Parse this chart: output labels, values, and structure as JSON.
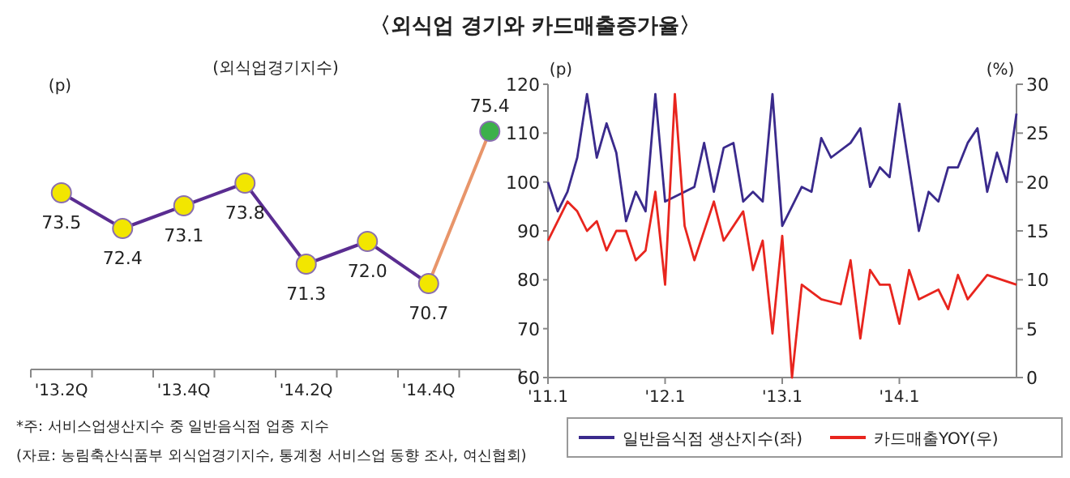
{
  "chart_data": [
    {
      "type": "line",
      "title": "〈외식업 경기와 카드매출증가율〉",
      "subtitle": "(외식업경기지수)",
      "ylabel": "(p)",
      "categories": [
        "'13.2Q",
        null,
        "'13.4Q",
        null,
        "'14.2Q",
        null,
        "'14.4Q",
        null
      ],
      "marker": "circle",
      "series": [
        {
          "color": "#5a2d91",
          "colors": [
            "#f2e600",
            "#f2e600",
            "#f2e600",
            "#f2e600",
            "#f2e600",
            "#f2e600",
            "#f2e600",
            null
          ],
          "values": [
            73.5,
            72.4,
            73.1,
            73.8,
            71.3,
            72.0,
            70.7,
            null
          ],
          "value_labels": [
            "73.5",
            "72.4",
            "73.1",
            "73.8",
            "71.3",
            "72.0",
            "70.7",
            null
          ]
        },
        {
          "color": "#e8956a",
          "colors": [
            null,
            null,
            null,
            null,
            null,
            null,
            null,
            "#3cb04a"
          ],
          "values": [
            null,
            null,
            null,
            null,
            null,
            null,
            70.7,
            75.4
          ],
          "value_labels": [
            null,
            null,
            null,
            null,
            null,
            null,
            null,
            "75.4"
          ]
        }
      ],
      "annotations": [
        "*주: 서비스업생산지수 중 일반음식점 업종 지수",
        "(자료: 농림축산식품부 외식업경기지수, 통계청 서비스업 동향 조사, 여신협회)"
      ]
    },
    {
      "type": "line",
      "ylabel": "(p)",
      "y2label": "(%)",
      "xlim": [
        "2011-01",
        "2015-01"
      ],
      "xticks": [
        {
          "value": "2011-01",
          "label": "'11.1"
        },
        {
          "value": "2012-01",
          "label": "'12.1"
        },
        {
          "value": "2013-01",
          "label": "'13.1"
        },
        {
          "value": "2014-01",
          "label": "'14.1"
        }
      ],
      "ylim": [
        60,
        120
      ],
      "yticks": [
        60,
        70,
        80,
        90,
        100,
        110,
        120
      ],
      "y2lim": [
        0,
        30
      ],
      "y2ticks": [
        0,
        5,
        10,
        15,
        20,
        25,
        30
      ],
      "legend": "bottom",
      "series": [
        {
          "name": "일반음식점 생산지수(좌)",
          "color": "#3a2a8c",
          "x": [
            "2011-01",
            "2011-02",
            "2011-03",
            "2011-04",
            "2011-05",
            "2011-06",
            "2011-07",
            "2011-08",
            "2011-09",
            "2011-10",
            "2011-11",
            "2011-12",
            "2012-01",
            "2012-02",
            "2012-03",
            "2012-04",
            "2012-05",
            "2012-06",
            "2012-07",
            "2012-08",
            "2012-09",
            "2012-10",
            "2012-11",
            "2012-12",
            "2013-01",
            "2013-03",
            "2013-04",
            "2013-05",
            "2013-06",
            "2013-08",
            "2013-09",
            "2013-10",
            "2013-11",
            "2013-12",
            "2014-01",
            "2014-03",
            "2014-04",
            "2014-05",
            "2014-06",
            "2014-07",
            "2014-08",
            "2014-09",
            "2014-10",
            "2014-11",
            "2014-12",
            "2015-01"
          ],
          "values": [
            100,
            94,
            98,
            105,
            118,
            105,
            112,
            106,
            92,
            98,
            94,
            118,
            96,
            97,
            98,
            99,
            108,
            98,
            107,
            108,
            96,
            98,
            96,
            118,
            91,
            99,
            98,
            109,
            105,
            108,
            111,
            99,
            103,
            101,
            116,
            90,
            98,
            96,
            103,
            103,
            108,
            111,
            98,
            106,
            100,
            114
          ]
        },
        {
          "name": "카드매출YOY(우)",
          "color": "#e8251e",
          "axis": "y2",
          "x": [
            "2011-01",
            "2011-03",
            "2011-04",
            "2011-05",
            "2011-06",
            "2011-07",
            "2011-08",
            "2011-09",
            "2011-10",
            "2011-11",
            "2011-12",
            "2012-01",
            "2012-02",
            "2012-03",
            "2012-04",
            "2012-06",
            "2012-07",
            "2012-09",
            "2012-10",
            "2012-11",
            "2012-12",
            "2013-01",
            "2013-02",
            "2013-03",
            "2013-05",
            "2013-07",
            "2013-08",
            "2013-09",
            "2013-10",
            "2013-11",
            "2013-12",
            "2014-01",
            "2014-02",
            "2014-03",
            "2014-05",
            "2014-06",
            "2014-07",
            "2014-08",
            "2014-10",
            "2015-01"
          ],
          "values": [
            14,
            18,
            17,
            15,
            16,
            13,
            15,
            15,
            12,
            13,
            19,
            9.5,
            29,
            15.5,
            12,
            18,
            14,
            17,
            11,
            14,
            4.5,
            14.5,
            0,
            9.5,
            8,
            7.5,
            12,
            4,
            11,
            9.5,
            9.5,
            5.5,
            11,
            8,
            9,
            7,
            10.5,
            8,
            10.5,
            9.5
          ]
        }
      ]
    }
  ]
}
